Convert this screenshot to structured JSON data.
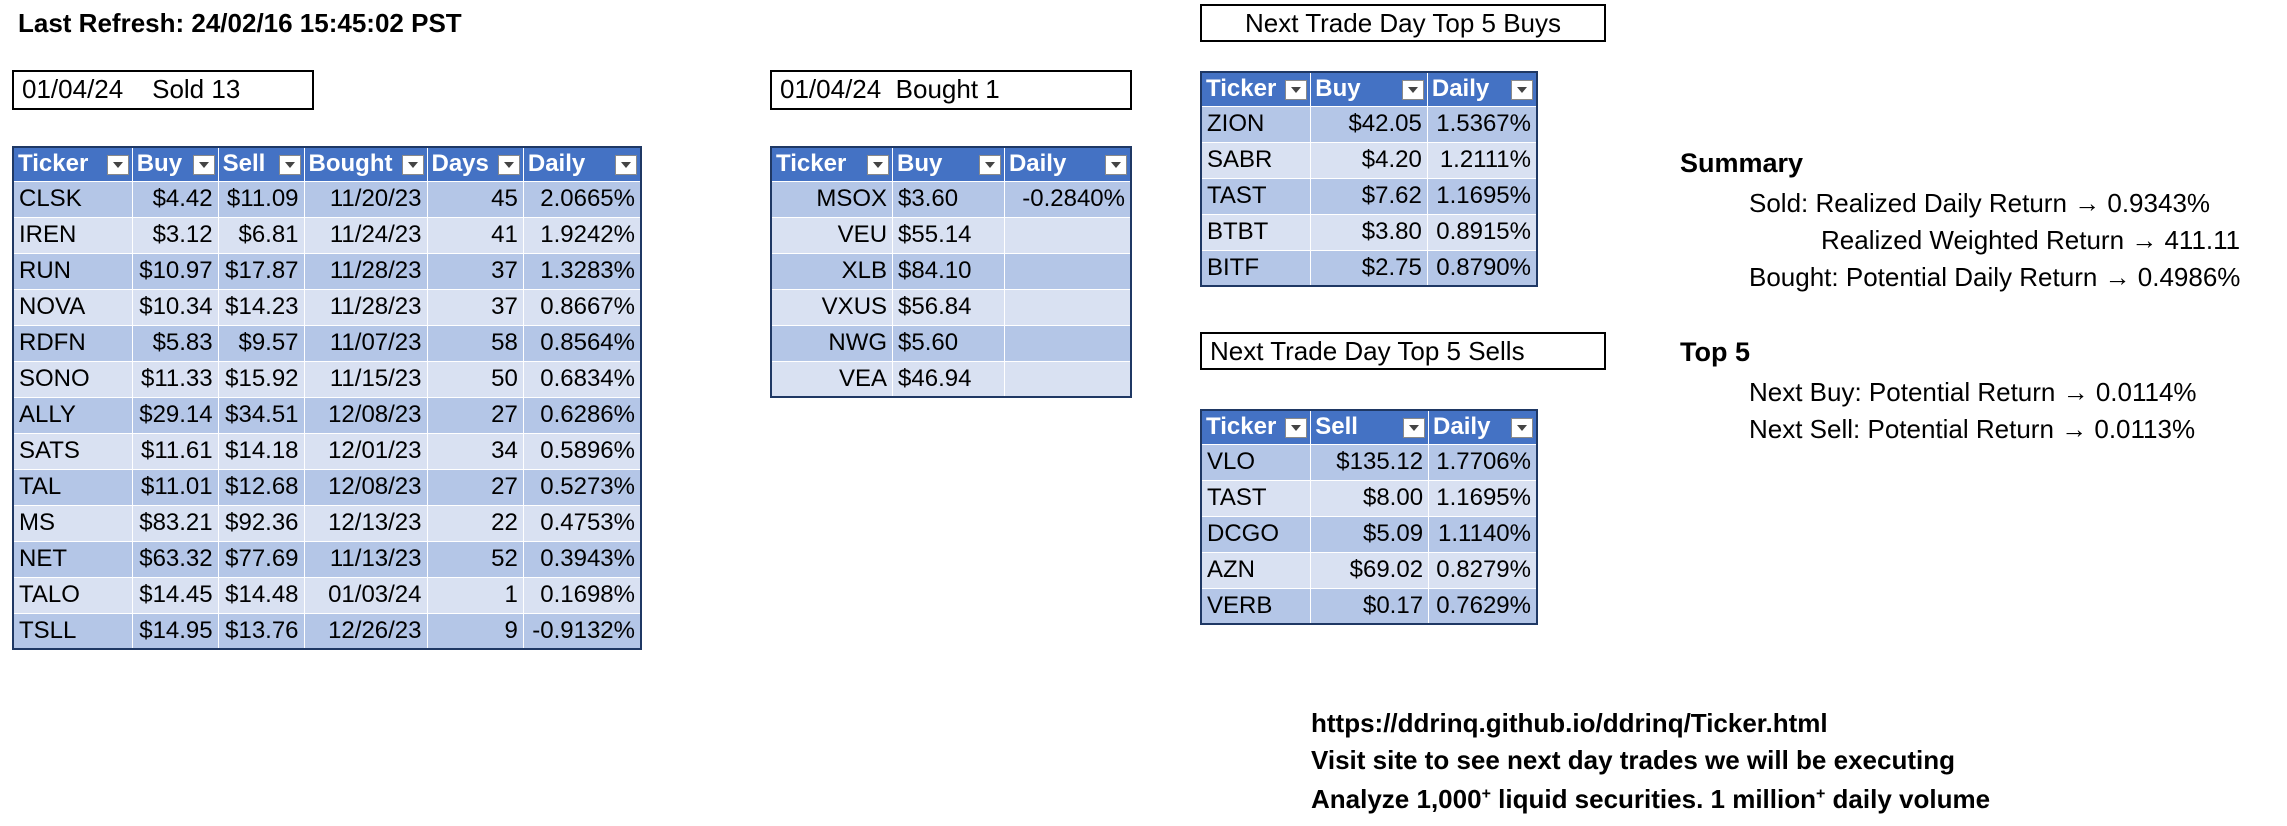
{
  "refresh": "Last Refresh: 24/02/16 15:45:02 PST",
  "sold": {
    "label": "01/04/24    Sold 13",
    "columns": [
      "Ticker",
      "Buy",
      "Sell",
      "Bought",
      "Days",
      "Daily"
    ],
    "rows": [
      [
        "CLSK",
        "$4.42",
        "$11.09",
        "11/20/23",
        "45",
        "2.0665%"
      ],
      [
        "IREN",
        "$3.12",
        "$6.81",
        "11/24/23",
        "41",
        "1.9242%"
      ],
      [
        "RUN",
        "$10.97",
        "$17.87",
        "11/28/23",
        "37",
        "1.3283%"
      ],
      [
        "NOVA",
        "$10.34",
        "$14.23",
        "11/28/23",
        "37",
        "0.8667%"
      ],
      [
        "RDFN",
        "$5.83",
        "$9.57",
        "11/07/23",
        "58",
        "0.8564%"
      ],
      [
        "SONO",
        "$11.33",
        "$15.92",
        "11/15/23",
        "50",
        "0.6834%"
      ],
      [
        "ALLY",
        "$29.14",
        "$34.51",
        "12/08/23",
        "27",
        "0.6286%"
      ],
      [
        "SATS",
        "$11.61",
        "$14.18",
        "12/01/23",
        "34",
        "0.5896%"
      ],
      [
        "TAL",
        "$11.01",
        "$12.68",
        "12/08/23",
        "27",
        "0.5273%"
      ],
      [
        "MS",
        "$83.21",
        "$92.36",
        "12/13/23",
        "22",
        "0.4753%"
      ],
      [
        "NET",
        "$63.32",
        "$77.69",
        "11/13/23",
        "52",
        "0.3943%"
      ],
      [
        "TALO",
        "$14.45",
        "$14.48",
        "01/03/24",
        "1",
        "0.1698%"
      ],
      [
        "TSLL",
        "$14.95",
        "$13.76",
        "12/26/23",
        "9",
        "-0.9132%"
      ]
    ]
  },
  "bought": {
    "label": "01/04/24  Bought 1",
    "columns": [
      "Ticker",
      "Buy",
      "Daily"
    ],
    "rows": [
      [
        "MSOX",
        "$3.60",
        "-0.2840%"
      ],
      [
        "VEU",
        "$55.14",
        ""
      ],
      [
        "XLB",
        "$84.10",
        ""
      ],
      [
        "VXUS",
        "$56.84",
        ""
      ],
      [
        "NWG",
        "$5.60",
        ""
      ],
      [
        "VEA",
        "$46.94",
        ""
      ]
    ]
  },
  "top_buys": {
    "label": "Next Trade Day Top 5 Buys",
    "columns": [
      "Ticker",
      "Buy",
      "Daily"
    ],
    "rows": [
      [
        "ZION",
        "$42.05",
        "1.5367%"
      ],
      [
        "SABR",
        "$4.20",
        "1.2111%"
      ],
      [
        "TAST",
        "$7.62",
        "1.1695%"
      ],
      [
        "BTBT",
        "$3.80",
        "0.8915%"
      ],
      [
        "BITF",
        "$2.75",
        "0.8790%"
      ]
    ]
  },
  "top_sells": {
    "label": "Next Trade Day Top 5 Sells",
    "columns": [
      "Ticker",
      "Sell",
      "Daily"
    ],
    "rows": [
      [
        "VLO",
        "$135.12",
        "1.7706%"
      ],
      [
        "TAST",
        "$8.00",
        "1.1695%"
      ],
      [
        "DCGO",
        "$5.09",
        "1.1140%"
      ],
      [
        "AZN",
        "$69.02",
        "0.8279%"
      ],
      [
        "VERB",
        "$0.17",
        "0.7629%"
      ]
    ]
  },
  "summary": {
    "heading": "Summary",
    "sold_line": "Sold: Realized Daily Return → 0.9343%",
    "weighted_line": "Realized Weighted Return → 411.11",
    "bought_line": "Bought: Potential Daily Return → 0.4986%"
  },
  "top5": {
    "heading": "Top 5",
    "buy_line": "Next Buy: Potential Return → 0.0114%",
    "sell_line": "Next Sell: Potential Return → 0.0113%"
  },
  "footer": {
    "url": "https://ddrinq.github.io/ddrinq/Ticker.html",
    "visit": "Visit site to see next day trades we will be executing",
    "analyze_a": "Analyze 1,000",
    "sup1": "+",
    "analyze_b": " liquid securities.  1 million",
    "sup2": "+",
    "analyze_c": " daily volume"
  }
}
